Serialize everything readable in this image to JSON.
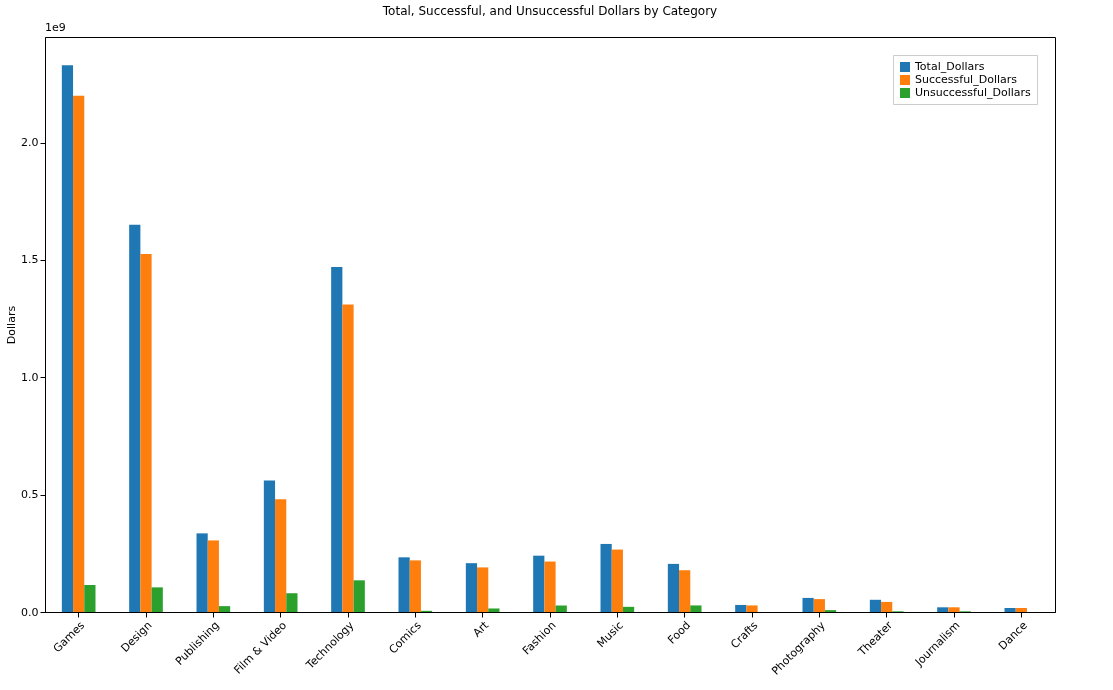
{
  "chart_data": {
    "type": "bar",
    "title": "Total, Successful, and Unsuccessful Dollars by Category",
    "ylabel": "Dollars",
    "annotations": [
      "1e9"
    ],
    "categories": [
      "Games",
      "Design",
      "Publishing",
      "Film & Video",
      "Technology",
      "Comics",
      "Art",
      "Fashion",
      "Music",
      "Food",
      "Crafts",
      "Photography",
      "Theater",
      "Journalism",
      "Dance"
    ],
    "series": [
      {
        "name": "Total_Dollars",
        "color": "#1f77b4",
        "values": [
          2.33,
          1.65,
          0.335,
          0.56,
          1.47,
          0.233,
          0.208,
          0.24,
          0.29,
          0.205,
          0.03,
          0.06,
          0.052,
          0.02,
          0.017
        ]
      },
      {
        "name": "Successful_Dollars",
        "color": "#ff7f0e",
        "values": [
          2.2,
          1.525,
          0.305,
          0.48,
          1.31,
          0.22,
          0.19,
          0.215,
          0.266,
          0.178,
          0.028,
          0.055,
          0.043,
          0.02,
          0.017
        ]
      },
      {
        "name": "Unsuccessful_Dollars",
        "color": "#2ca02c",
        "values": [
          0.115,
          0.105,
          0.025,
          0.08,
          0.135,
          0.005,
          0.015,
          0.028,
          0.022,
          0.028,
          null,
          0.008,
          0.003,
          0.003,
          null
        ]
      }
    ],
    "ylim": [
      0,
      2.45
    ],
    "yticks": [
      {
        "value": 0,
        "label": "0.0"
      },
      {
        "value": 0.5,
        "label": "0.5"
      },
      {
        "value": 1,
        "label": "1.0"
      },
      {
        "value": 1.5,
        "label": "1.5"
      },
      {
        "value": 2,
        "label": "2.0"
      }
    ],
    "legend": "top right",
    "grid": false
  }
}
